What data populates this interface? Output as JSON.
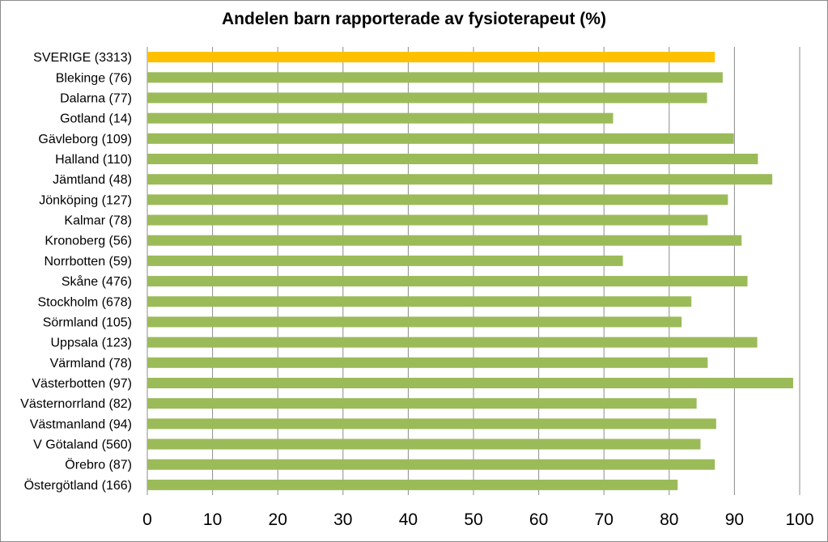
{
  "chart_data": {
    "type": "bar",
    "orientation": "horizontal",
    "title": "Andelen barn rapporterade av fysioterapeut (%)",
    "xlabel": "",
    "ylabel": "",
    "xlim": [
      0,
      100
    ],
    "xticks": [
      0,
      10,
      20,
      30,
      40,
      50,
      60,
      70,
      80,
      90,
      100
    ],
    "grid": "vertical",
    "legend": "none",
    "colors": {
      "highlight": "#ffc000",
      "default": "#9bbb59",
      "grid": "#8c8c8c"
    },
    "categories": [
      "SVERIGE (3313)",
      "Blekinge (76)",
      "Dalarna (77)",
      "Gotland (14)",
      "Gävleborg (109)",
      "Halland (110)",
      "Jämtland (48)",
      "Jönköping (127)",
      "Kalmar (78)",
      "Kronoberg (56)",
      "Norrbotten (59)",
      "Skåne (476)",
      "Stockholm (678)",
      "Sörmland (105)",
      "Uppsala (123)",
      "Värmland (78)",
      "Västerbotten (97)",
      "Västernorrland (82)",
      "Västmanland (94)",
      "V Götaland (560)",
      "Örebro (87)",
      "Östergötland (166)"
    ],
    "values": [
      87,
      88.2,
      85.8,
      71.4,
      89.9,
      93.6,
      95.8,
      89,
      85.9,
      91.1,
      72.9,
      92,
      83.4,
      81.9,
      93.5,
      85.9,
      99,
      84.2,
      87.2,
      84.8,
      87.0,
      81.3
    ],
    "highlight_index": 0
  }
}
